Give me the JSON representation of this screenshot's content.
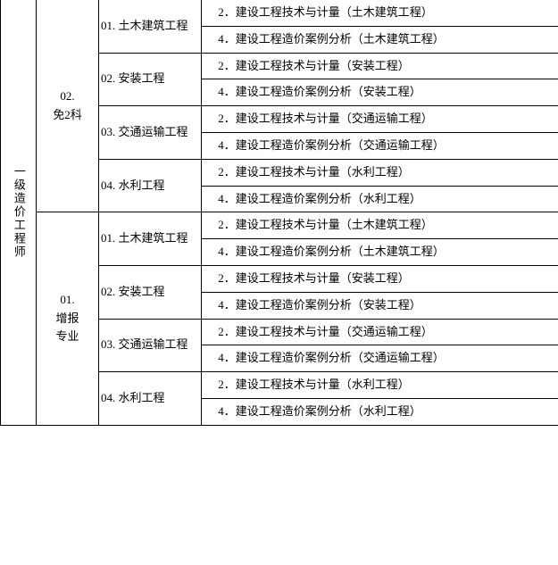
{
  "exam_title": "一级造价工程师",
  "levels": {
    "a": "02.\n免2科",
    "b": "01.\n增报\n专业"
  },
  "majors": {
    "m1": "01. 土木建筑工程",
    "m2": "02. 安装工程",
    "m3": "03. 交通运输工程",
    "m4": "04. 水利工程"
  },
  "subjects": {
    "s1a": "  2．建设工程技术与计量（土木建筑工程）",
    "s1b": "  4．建设工程造价案例分析（土木建筑工程）",
    "s2a": "  2．建设工程技术与计量（安装工程）",
    "s2b": "  4．建设工程造价案例分析（安装工程）",
    "s3a": "  2．建设工程技术与计量（交通运输工程）",
    "s3b": "  4．建设工程造价案例分析（交通运输工程）",
    "s4a": "  2．建设工程技术与计量（水利工程）",
    "s4b": "  4．建设工程造价案例分析（水利工程）"
  }
}
